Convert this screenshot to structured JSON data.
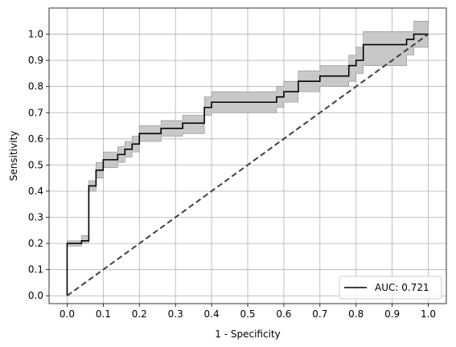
{
  "chart_data": {
    "type": "line",
    "title": "",
    "xlabel": "1 - Specificity",
    "ylabel": "Sensitivity",
    "xlim": [
      -0.05,
      1.05
    ],
    "ylim": [
      -0.03,
      1.1
    ],
    "xticks": [
      0.0,
      0.1,
      0.2,
      0.3,
      0.4,
      0.5,
      0.6,
      0.7,
      0.8,
      0.9,
      1.0
    ],
    "yticks": [
      0.0,
      0.1,
      0.2,
      0.3,
      0.4,
      0.5,
      0.6,
      0.7,
      0.8,
      0.9,
      1.0
    ],
    "tick_format": "0.1f",
    "grid": true,
    "legend_position": "lower-right",
    "colors": {
      "roc_line": "#000000",
      "band": "#c8c8c8",
      "band_edge": "#8c8c8c",
      "chance_line": "#404040",
      "grid": "#b0b0b0"
    },
    "series": [
      {
        "name": "AUC: 0.721",
        "style": "step",
        "x": [
          0.0,
          0.0,
          0.04,
          0.04,
          0.06,
          0.06,
          0.08,
          0.08,
          0.1,
          0.1,
          0.14,
          0.14,
          0.16,
          0.16,
          0.18,
          0.18,
          0.2,
          0.2,
          0.26,
          0.26,
          0.32,
          0.32,
          0.38,
          0.38,
          0.4,
          0.4,
          0.58,
          0.58,
          0.6,
          0.6,
          0.64,
          0.64,
          0.7,
          0.7,
          0.78,
          0.78,
          0.8,
          0.8,
          0.82,
          0.82,
          0.94,
          0.94,
          0.96,
          0.96,
          1.0
        ],
        "y": [
          0.0,
          0.2,
          0.2,
          0.21,
          0.21,
          0.42,
          0.42,
          0.48,
          0.48,
          0.52,
          0.52,
          0.54,
          0.54,
          0.56,
          0.56,
          0.58,
          0.58,
          0.62,
          0.62,
          0.64,
          0.64,
          0.66,
          0.66,
          0.72,
          0.72,
          0.74,
          0.74,
          0.76,
          0.76,
          0.78,
          0.78,
          0.82,
          0.82,
          0.84,
          0.84,
          0.88,
          0.88,
          0.9,
          0.9,
          0.96,
          0.96,
          0.98,
          0.98,
          1.0,
          1.0
        ]
      },
      {
        "name": "",
        "style": "dashed",
        "x": [
          0.0,
          1.0
        ],
        "y": [
          0.0,
          1.0
        ]
      }
    ],
    "band": {
      "x": [
        0.0,
        0.04,
        0.06,
        0.08,
        0.1,
        0.14,
        0.16,
        0.18,
        0.2,
        0.26,
        0.32,
        0.38,
        0.4,
        0.58,
        0.6,
        0.64,
        0.7,
        0.78,
        0.8,
        0.82,
        0.94,
        0.96,
        1.0
      ],
      "lower": [
        0.19,
        0.2,
        0.4,
        0.45,
        0.49,
        0.51,
        0.53,
        0.55,
        0.59,
        0.61,
        0.62,
        0.69,
        0.7,
        0.72,
        0.74,
        0.78,
        0.8,
        0.82,
        0.85,
        0.88,
        0.92,
        0.95,
        0.95
      ],
      "upper": [
        0.21,
        0.23,
        0.44,
        0.51,
        0.55,
        0.57,
        0.59,
        0.61,
        0.65,
        0.67,
        0.69,
        0.76,
        0.78,
        0.8,
        0.82,
        0.86,
        0.88,
        0.92,
        0.95,
        1.01,
        1.01,
        1.05,
        1.05
      ]
    }
  }
}
